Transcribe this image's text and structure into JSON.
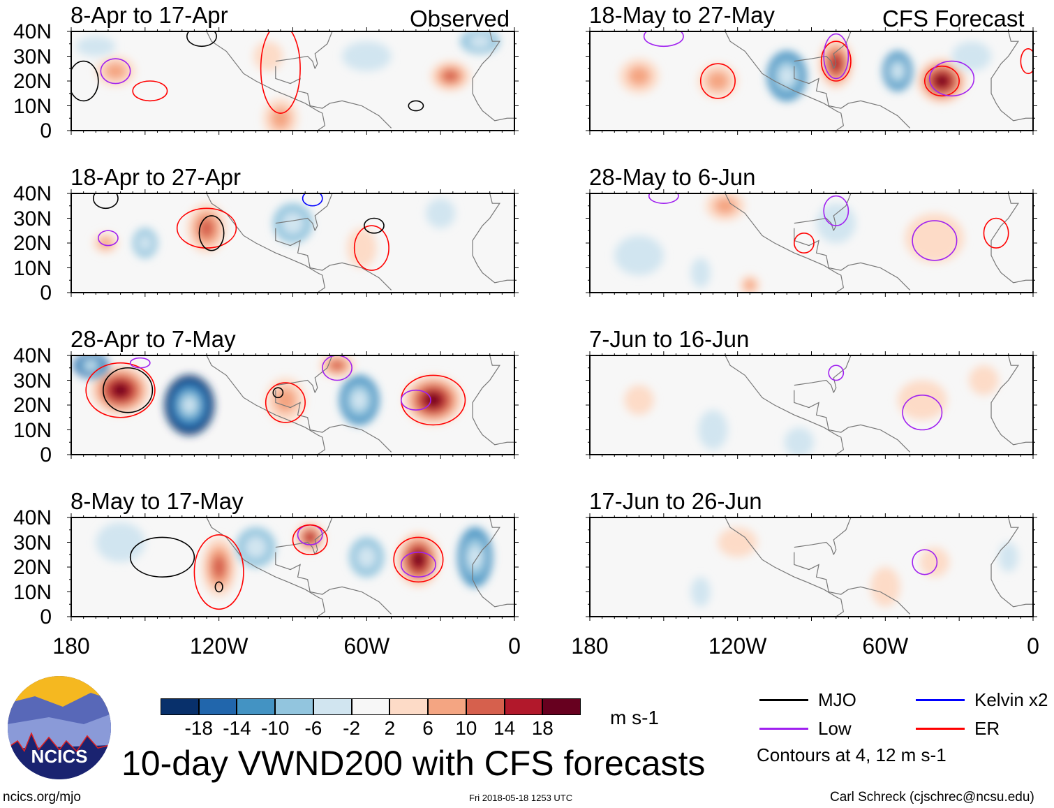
{
  "chart_data": {
    "type": "heatmap",
    "title": "10-day VWND200 with CFS forecasts",
    "units": "m s-1",
    "contour_note": "Contours at 4, 12 m s-1",
    "section_labels": {
      "observed": "Observed",
      "forecast": "CFS Forecast"
    },
    "lat_ticks": [
      "40N",
      "30N",
      "20N",
      "10N",
      "0"
    ],
    "lon_ticks": [
      "180",
      "120W",
      "60W",
      "0"
    ],
    "lon_range": [
      -180,
      0
    ],
    "lat_range": [
      0,
      40
    ],
    "colorbar": {
      "colors": [
        "#08306b",
        "#2166ac",
        "#4393c3",
        "#92c5de",
        "#d1e5f0",
        "#f7f7f7",
        "#fddbc7",
        "#f4a582",
        "#d6604d",
        "#b2182b",
        "#67001f"
      ],
      "ticks": [
        "-18",
        "-14",
        "-10",
        "-6",
        "-2",
        "2",
        "6",
        "10",
        "14",
        "18"
      ],
      "tick_values": [
        -18,
        -14,
        -10,
        -6,
        -2,
        2,
        6,
        10,
        14,
        18
      ]
    },
    "legend": [
      {
        "label": "MJO",
        "color": "#000000"
      },
      {
        "label": "Kelvin x2",
        "color": "#0000ff"
      },
      {
        "label": "Low",
        "color": "#a020f0"
      },
      {
        "label": "ER",
        "color": "#ff0000"
      }
    ],
    "panels": [
      {
        "title": "8-Apr to 17-Apr",
        "section": "observed",
        "shading": [
          [
            -162,
            24,
            8,
            6,
            8
          ],
          [
            -95,
            5,
            7,
            8,
            9
          ],
          [
            -26,
            22,
            8,
            6,
            10
          ],
          [
            -14,
            36,
            8,
            5,
            -8
          ],
          [
            -170,
            34,
            8,
            4,
            -5
          ],
          [
            -60,
            30,
            10,
            6,
            -4
          ],
          [
            -100,
            30,
            6,
            6,
            5
          ]
        ],
        "contours": [
          [
            "Low",
            -162,
            24,
            6,
            5
          ],
          [
            "ER",
            -148,
            16,
            7,
            4
          ],
          [
            "MJO",
            -40,
            10,
            3,
            2
          ],
          [
            "MJO",
            -175,
            20,
            6,
            8
          ],
          [
            "ER",
            -95,
            25,
            8,
            18
          ],
          [
            "MJO",
            -127,
            38,
            6,
            4
          ]
        ]
      },
      {
        "title": "18-Apr to 27-Apr",
        "section": "observed",
        "shading": [
          [
            -125,
            26,
            8,
            10,
            12
          ],
          [
            -166,
            20,
            5,
            4,
            7
          ],
          [
            -90,
            28,
            8,
            8,
            -9
          ],
          [
            -150,
            20,
            5,
            6,
            -6
          ],
          [
            -30,
            32,
            6,
            6,
            -5
          ],
          [
            -62,
            18,
            6,
            8,
            5
          ]
        ],
        "contours": [
          [
            "ER",
            -125,
            26,
            12,
            8
          ],
          [
            "MJO",
            -123,
            24,
            5,
            7
          ],
          [
            "Low",
            -165,
            22,
            4,
            3
          ],
          [
            "ER",
            -58,
            18,
            7,
            9
          ],
          [
            "MJO",
            -57,
            27,
            4,
            3
          ],
          [
            "MJO",
            -166,
            38,
            5,
            4
          ],
          [
            "Kelvin x2",
            -82,
            38,
            4,
            3
          ]
        ]
      },
      {
        "title": "28-Apr to 7-May",
        "section": "observed",
        "shading": [
          [
            -160,
            26,
            12,
            10,
            20
          ],
          [
            -132,
            20,
            10,
            12,
            -18
          ],
          [
            -172,
            36,
            7,
            5,
            -14
          ],
          [
            -93,
            22,
            8,
            9,
            8
          ],
          [
            -63,
            22,
            8,
            10,
            -12
          ],
          [
            -33,
            22,
            12,
            10,
            18
          ],
          [
            -72,
            36,
            7,
            5,
            10
          ]
        ],
        "contours": [
          [
            "ER",
            -160,
            26,
            14,
            11
          ],
          [
            "MJO",
            -157,
            26,
            10,
            9
          ],
          [
            "Low",
            -152,
            37,
            4,
            2
          ],
          [
            "ER",
            -93,
            21,
            8,
            8
          ],
          [
            "ER",
            -33,
            22,
            13,
            10
          ],
          [
            "Low",
            -40,
            22,
            6,
            4
          ],
          [
            "Low",
            -72,
            35,
            6,
            5
          ],
          [
            "MJO",
            -96,
            25,
            2,
            2
          ]
        ]
      },
      {
        "title": "8-May to 17-May",
        "section": "observed",
        "shading": [
          [
            -120,
            20,
            7,
            12,
            10
          ],
          [
            -83,
            32,
            6,
            6,
            14
          ],
          [
            -39,
            23,
            9,
            11,
            18
          ],
          [
            -16,
            24,
            7,
            12,
            -12
          ],
          [
            -105,
            28,
            8,
            8,
            -8
          ],
          [
            -60,
            24,
            7,
            8,
            -8
          ],
          [
            -160,
            30,
            10,
            8,
            -4
          ]
        ],
        "contours": [
          [
            "ER",
            -120,
            18,
            10,
            15
          ],
          [
            "MJO",
            -143,
            24,
            13,
            8
          ],
          [
            "Low",
            -83,
            33,
            5,
            4
          ],
          [
            "ER",
            -83,
            31,
            7,
            6
          ],
          [
            "ER",
            -39,
            23,
            10,
            9
          ],
          [
            "Low",
            -39,
            21,
            7,
            5
          ],
          [
            "MJO",
            -120,
            12,
            1.5,
            2
          ]
        ]
      },
      {
        "title": "18-May to 27-May",
        "section": "forecast",
        "shading": [
          [
            -80,
            27,
            7,
            10,
            14
          ],
          [
            -37,
            20,
            10,
            9,
            18
          ],
          [
            -100,
            22,
            8,
            10,
            -12
          ],
          [
            -55,
            24,
            6,
            8,
            -10
          ],
          [
            -160,
            22,
            8,
            7,
            7
          ],
          [
            -128,
            20,
            8,
            7,
            6
          ],
          [
            -25,
            30,
            8,
            6,
            -5
          ]
        ],
        "contours": [
          [
            "ER",
            -128,
            20,
            7,
            7
          ],
          [
            "ER",
            -80,
            28,
            6,
            8
          ],
          [
            "Low",
            -80,
            30,
            5,
            9
          ],
          [
            "ER",
            -37,
            20,
            7,
            6
          ],
          [
            "Low",
            -33,
            21,
            9,
            7
          ],
          [
            "ER",
            -2,
            28,
            3,
            5
          ],
          [
            "Low",
            -150,
            38,
            8,
            4
          ]
        ]
      },
      {
        "title": "28-May to 6-Jun",
        "section": "forecast",
        "shading": [
          [
            -125,
            35,
            8,
            6,
            6
          ],
          [
            -40,
            22,
            12,
            10,
            5
          ],
          [
            -80,
            28,
            8,
            8,
            -5
          ],
          [
            -135,
            8,
            4,
            6,
            -5
          ],
          [
            -115,
            3,
            4,
            4,
            6
          ],
          [
            -160,
            15,
            10,
            8,
            -2
          ]
        ],
        "contours": [
          [
            "Low",
            -40,
            21,
            9,
            8
          ],
          [
            "ER",
            -93,
            20,
            4,
            4
          ],
          [
            "ER",
            -15,
            24,
            5,
            6
          ],
          [
            "Low",
            -80,
            33,
            5,
            6
          ],
          [
            "Low",
            -150,
            39,
            6,
            3
          ]
        ]
      },
      {
        "title": "7-Jun to 16-Jun",
        "section": "forecast",
        "shading": [
          [
            -45,
            22,
            10,
            8,
            4
          ],
          [
            -130,
            10,
            6,
            8,
            -3
          ],
          [
            -20,
            30,
            6,
            6,
            4
          ],
          [
            -160,
            22,
            6,
            6,
            3
          ],
          [
            -95,
            5,
            6,
            6,
            -2
          ]
        ],
        "contours": [
          [
            "Low",
            -45,
            17,
            8,
            7
          ],
          [
            "Low",
            -80,
            33,
            3,
            3
          ]
        ]
      },
      {
        "title": "17-Jun to 26-Jun",
        "section": "forecast",
        "shading": [
          [
            -120,
            30,
            8,
            6,
            3
          ],
          [
            -60,
            12,
            6,
            8,
            3
          ],
          [
            -40,
            22,
            6,
            6,
            3
          ],
          [
            -135,
            10,
            4,
            6,
            -3
          ],
          [
            -10,
            24,
            4,
            6,
            -3
          ]
        ],
        "contours": [
          [
            "Low",
            -44,
            22,
            5,
            5
          ]
        ]
      }
    ]
  },
  "footer": {
    "site": "ncics.org/mjo",
    "timestamp": "Fri 2018-05-18 1253 UTC",
    "author": "Carl Schreck (cjschrec@ncsu.edu)",
    "logo_text": "NCICS"
  }
}
